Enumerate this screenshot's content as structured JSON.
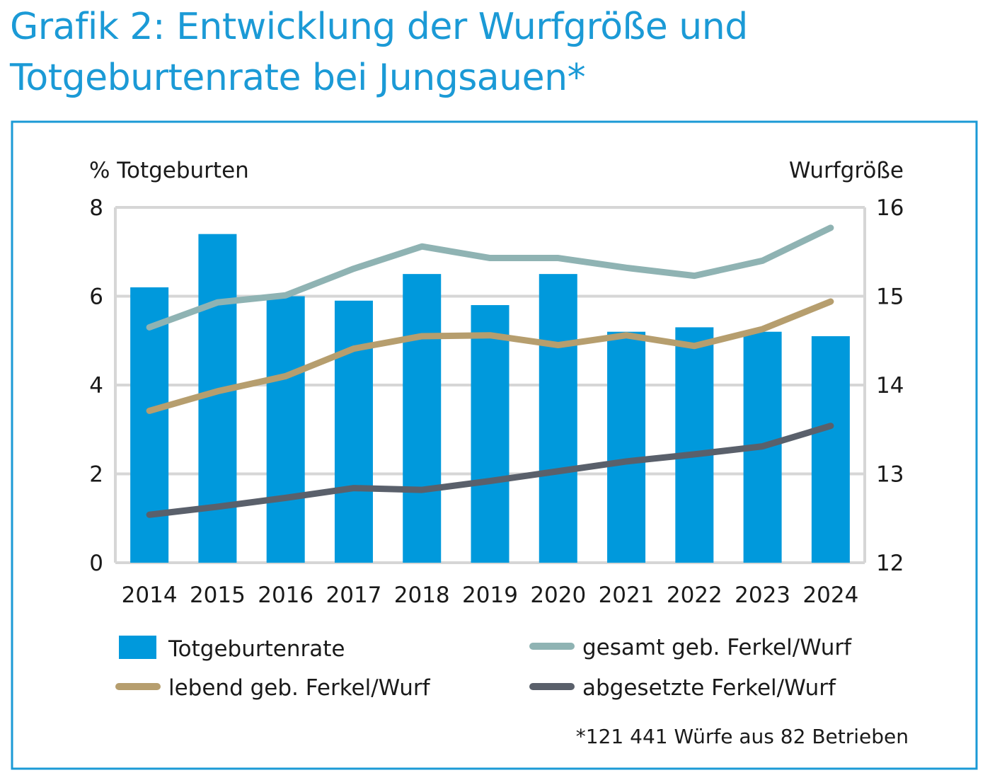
{
  "chart_data": {
    "type": "bar+line",
    "title_lines": [
      "Grafik 2: Entwicklung der Wurfgröße und",
      "Totgeburtenrate bei Jungsauen*"
    ],
    "ylabel_left": "% Totgeburten",
    "ylabel_right": "Wurfgröße",
    "ylim_left": [
      0,
      8
    ],
    "ylim_right": [
      12,
      16
    ],
    "yticks_left": [
      "0",
      "2",
      "4",
      "6",
      "8"
    ],
    "yticks_right": [
      "12",
      "13",
      "14",
      "15",
      "16"
    ],
    "grid": true,
    "categories": [
      "2014",
      "2015",
      "2016",
      "2017",
      "2018",
      "2019",
      "2020",
      "2021",
      "2022",
      "2023",
      "2024"
    ],
    "series": [
      {
        "name": "Totgeburtenrate",
        "type": "bar",
        "axis": "left",
        "color": "#0099dc",
        "values": [
          6.2,
          7.4,
          6.0,
          5.9,
          6.5,
          5.8,
          6.5,
          5.2,
          5.3,
          5.2,
          5.1
        ]
      },
      {
        "name": "gesamt geb. Ferkel/Wurf",
        "type": "line",
        "axis": "right",
        "color": "#8fb3b3",
        "values": [
          14.65,
          14.93,
          15.01,
          15.31,
          15.56,
          15.43,
          15.43,
          15.32,
          15.23,
          15.4,
          15.77
        ]
      },
      {
        "name": "lebend geb. Ferkel/Wurf",
        "type": "line",
        "axis": "right",
        "color": "#b69e6e",
        "values": [
          13.71,
          13.93,
          14.1,
          14.41,
          14.55,
          14.56,
          14.45,
          14.56,
          14.44,
          14.63,
          14.94
        ]
      },
      {
        "name": "abgesetzte Ferkel/Wurf",
        "type": "line",
        "axis": "right",
        "color": "#5a606b",
        "values": [
          12.54,
          12.63,
          12.73,
          12.84,
          12.82,
          12.92,
          13.03,
          13.14,
          13.22,
          13.31,
          13.54
        ]
      }
    ],
    "legend_placement": "bottom",
    "footnote": "*121 441 Würfe aus 82 Betrieben",
    "frame_color": "#1b9ad6",
    "grid_color": "#d6d6d6"
  }
}
